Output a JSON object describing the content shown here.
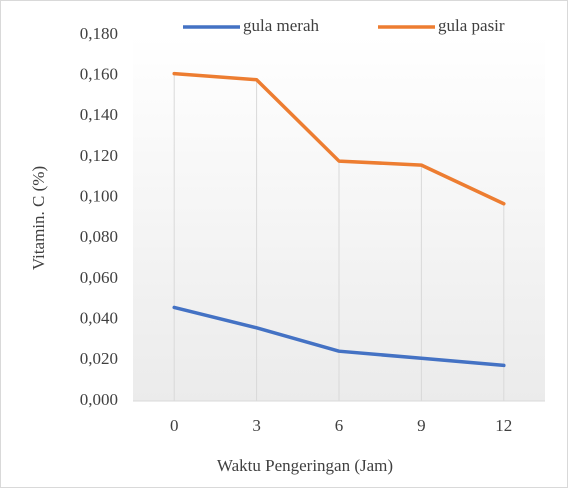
{
  "chart_data": {
    "type": "line",
    "categories": [
      "0",
      "3",
      "6",
      "9",
      "12"
    ],
    "series": [
      {
        "name": "gula merah",
        "color": "#4472c4",
        "values": [
          0.046,
          0.036,
          0.0245,
          0.021,
          0.0175
        ]
      },
      {
        "name": "gula pasir",
        "color": "#ed7d31",
        "values": [
          0.161,
          0.158,
          0.118,
          0.116,
          0.097
        ]
      }
    ],
    "ylim": [
      0,
      0.18
    ],
    "yticks": [
      {
        "value": 0,
        "label": "0,000"
      },
      {
        "value": 0.02,
        "label": "0,020"
      },
      {
        "value": 0.04,
        "label": "0,040"
      },
      {
        "value": 0.06,
        "label": "0,060"
      },
      {
        "value": 0.08,
        "label": "0,080"
      },
      {
        "value": 0.1,
        "label": "0,100"
      },
      {
        "value": 0.12,
        "label": "0,120"
      },
      {
        "value": 0.14,
        "label": "0,140"
      },
      {
        "value": 0.16,
        "label": "0,160"
      },
      {
        "value": 0.18,
        "label": "0,180"
      }
    ],
    "x_label": "Waktu Pengeringan (Jam)",
    "y_label": "Vitamin. C (%)",
    "legend": "top"
  }
}
